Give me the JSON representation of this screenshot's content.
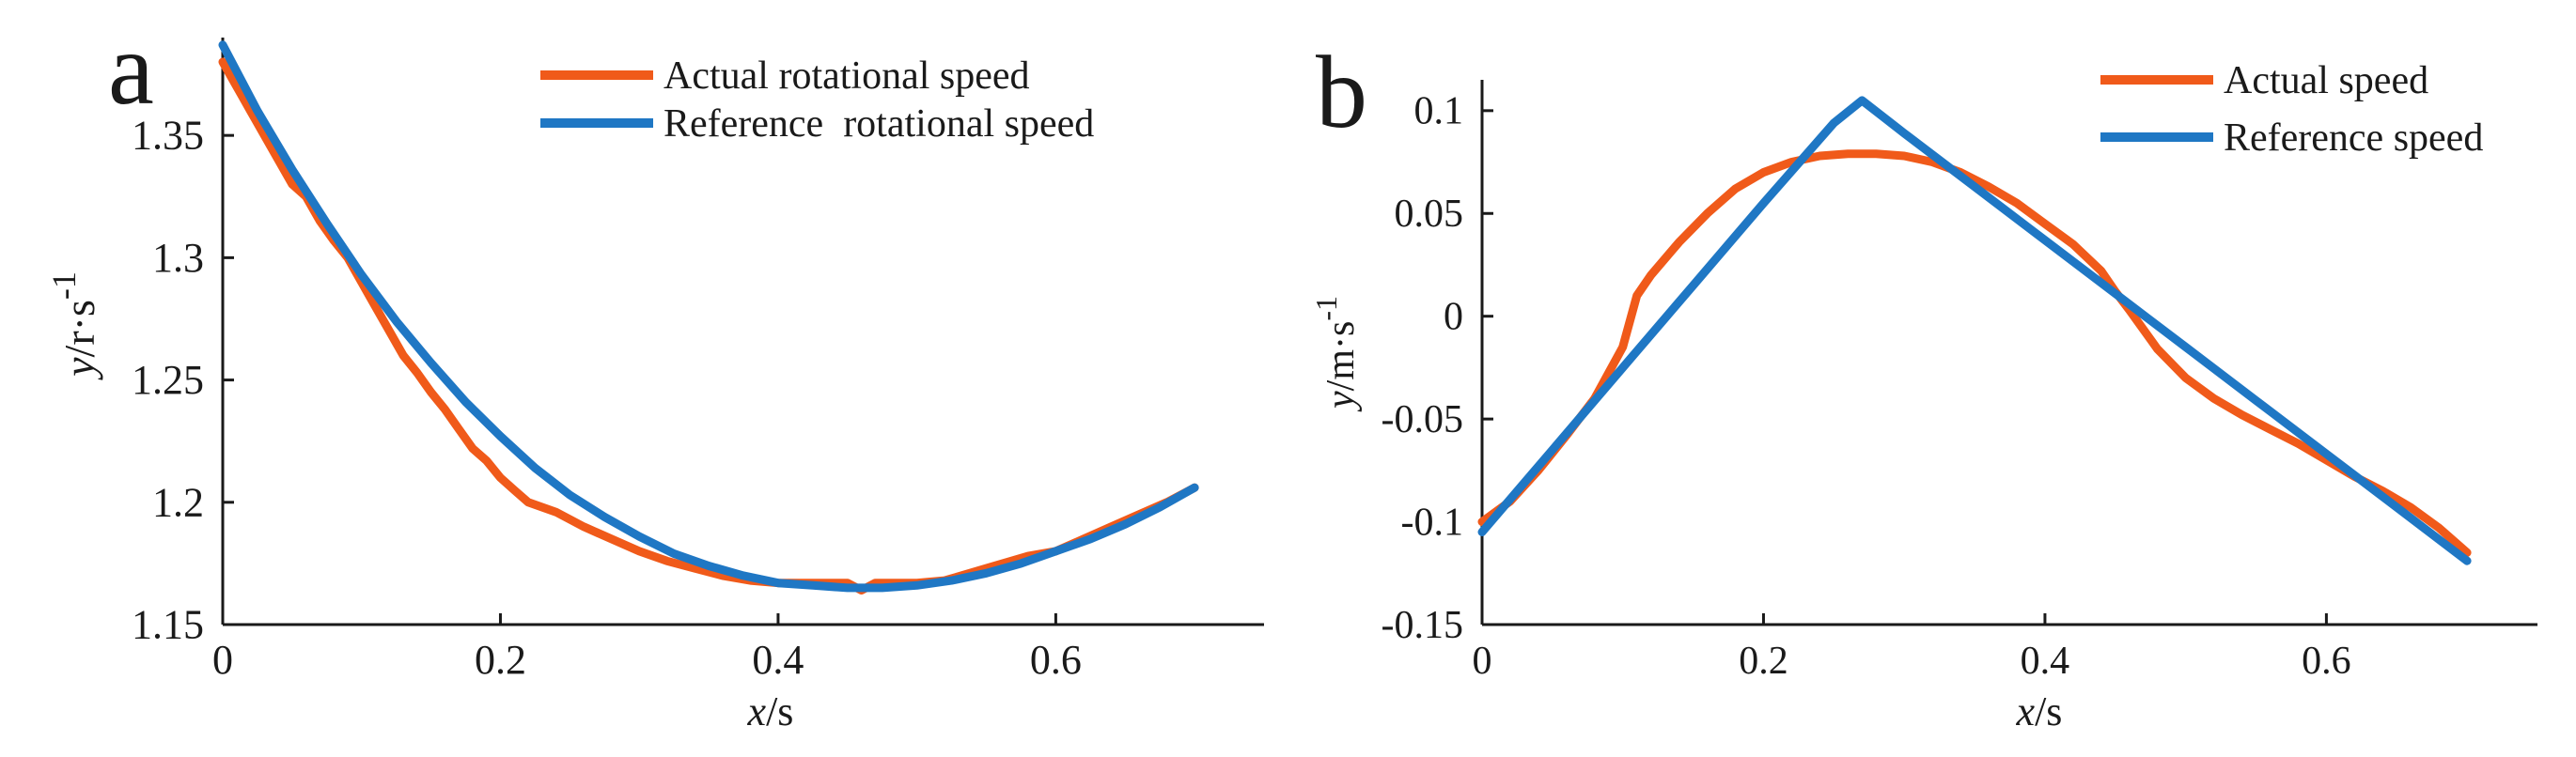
{
  "colors": {
    "actual": "#f05a1a",
    "reference": "#1f77c4",
    "axis": "#1a1a1a"
  },
  "chart_data": [
    {
      "panel_label": "a",
      "type": "line",
      "xlabel_var": "x",
      "xlabel_unit": "/s",
      "ylabel_var": "y",
      "ylabel_unit": "/r·s",
      "ylabel_exp": "-1",
      "xlim": [
        0,
        0.75
      ],
      "ylim": [
        1.15,
        1.39
      ],
      "xticks": [
        0,
        0.2,
        0.4,
        0.6
      ],
      "xtick_labels": [
        "0",
        "0.2",
        "0.4",
        "0.6"
      ],
      "yticks": [
        1.15,
        1.2,
        1.25,
        1.3,
        1.35
      ],
      "ytick_labels": [
        "1.15",
        "1.2",
        "1.25",
        "1.3",
        "1.35"
      ],
      "legend_position": "top-right",
      "series": [
        {
          "name": "Actual rotational speed",
          "color_key": "actual",
          "x": [
            0,
            0.01,
            0.02,
            0.03,
            0.04,
            0.05,
            0.06,
            0.07,
            0.08,
            0.09,
            0.1,
            0.11,
            0.12,
            0.13,
            0.14,
            0.15,
            0.16,
            0.17,
            0.18,
            0.19,
            0.2,
            0.21,
            0.22,
            0.24,
            0.26,
            0.28,
            0.3,
            0.32,
            0.34,
            0.36,
            0.38,
            0.4,
            0.42,
            0.44,
            0.45,
            0.46,
            0.47,
            0.5,
            0.52,
            0.55,
            0.58,
            0.6,
            0.62,
            0.64,
            0.66,
            0.68,
            0.7
          ],
          "y": [
            1.38,
            1.37,
            1.36,
            1.35,
            1.34,
            1.33,
            1.325,
            1.315,
            1.307,
            1.3,
            1.29,
            1.28,
            1.27,
            1.26,
            1.253,
            1.245,
            1.238,
            1.23,
            1.222,
            1.217,
            1.21,
            1.205,
            1.2,
            1.196,
            1.19,
            1.185,
            1.18,
            1.176,
            1.173,
            1.17,
            1.168,
            1.167,
            1.167,
            1.167,
            1.167,
            1.164,
            1.167,
            1.167,
            1.168,
            1.173,
            1.178,
            1.18,
            1.185,
            1.19,
            1.195,
            1.2,
            1.206
          ]
        },
        {
          "name": "Reference  rotational speed",
          "color_key": "reference",
          "x": [
            0,
            0.025,
            0.05,
            0.075,
            0.1,
            0.125,
            0.15,
            0.175,
            0.2,
            0.225,
            0.25,
            0.275,
            0.3,
            0.325,
            0.35,
            0.375,
            0.4,
            0.425,
            0.45,
            0.475,
            0.5,
            0.525,
            0.55,
            0.575,
            0.6,
            0.625,
            0.65,
            0.675,
            0.7
          ],
          "y": [
            1.387,
            1.36,
            1.336,
            1.314,
            1.293,
            1.274,
            1.257,
            1.241,
            1.227,
            1.214,
            1.203,
            1.194,
            1.186,
            1.179,
            1.174,
            1.17,
            1.167,
            1.166,
            1.165,
            1.165,
            1.166,
            1.168,
            1.171,
            1.175,
            1.18,
            1.185,
            1.191,
            1.198,
            1.206
          ]
        }
      ]
    },
    {
      "panel_label": "b",
      "type": "line",
      "xlabel_var": "x",
      "xlabel_unit": "/s",
      "ylabel_var": "y",
      "ylabel_unit": "/m·s",
      "ylabel_exp": "-1",
      "xlim": [
        0,
        0.75
      ],
      "ylim": [
        -0.15,
        0.115
      ],
      "xticks": [
        0,
        0.2,
        0.4,
        0.6
      ],
      "xtick_labels": [
        "0",
        "0.2",
        "0.4",
        "0.6"
      ],
      "yticks": [
        -0.15,
        -0.1,
        -0.05,
        0,
        0.05,
        0.1
      ],
      "ytick_labels": [
        "-0.15",
        "-0.1",
        "-0.05",
        "0",
        "0.05",
        "0.1"
      ],
      "legend_position": "top-right",
      "series": [
        {
          "name": "Actual speed",
          "color_key": "actual",
          "x": [
            0,
            0.02,
            0.04,
            0.06,
            0.08,
            0.1,
            0.11,
            0.12,
            0.14,
            0.16,
            0.18,
            0.2,
            0.22,
            0.24,
            0.26,
            0.28,
            0.3,
            0.32,
            0.34,
            0.36,
            0.38,
            0.4,
            0.42,
            0.44,
            0.45,
            0.46,
            0.48,
            0.5,
            0.52,
            0.54,
            0.56,
            0.58,
            0.6,
            0.62,
            0.64,
            0.66,
            0.68,
            0.7
          ],
          "y": [
            -0.1,
            -0.09,
            -0.075,
            -0.058,
            -0.04,
            -0.015,
            0.01,
            0.02,
            0.036,
            0.05,
            0.062,
            0.07,
            0.075,
            0.078,
            0.079,
            0.079,
            0.078,
            0.075,
            0.07,
            0.063,
            0.055,
            0.045,
            0.035,
            0.022,
            0.012,
            0.003,
            -0.016,
            -0.03,
            -0.04,
            -0.048,
            -0.055,
            -0.062,
            -0.07,
            -0.078,
            -0.085,
            -0.093,
            -0.103,
            -0.115
          ]
        },
        {
          "name": "Reference speed",
          "color_key": "reference",
          "x": [
            0,
            0.05,
            0.1,
            0.15,
            0.2,
            0.25,
            0.27,
            0.3,
            0.35,
            0.4,
            0.45,
            0.5,
            0.55,
            0.6,
            0.65,
            0.7
          ],
          "y": [
            -0.105,
            -0.065,
            -0.025,
            0.015,
            0.055,
            0.094,
            0.105,
            0.089,
            0.063,
            0.037,
            0.011,
            -0.015,
            -0.041,
            -0.067,
            -0.093,
            -0.119
          ]
        }
      ]
    }
  ]
}
